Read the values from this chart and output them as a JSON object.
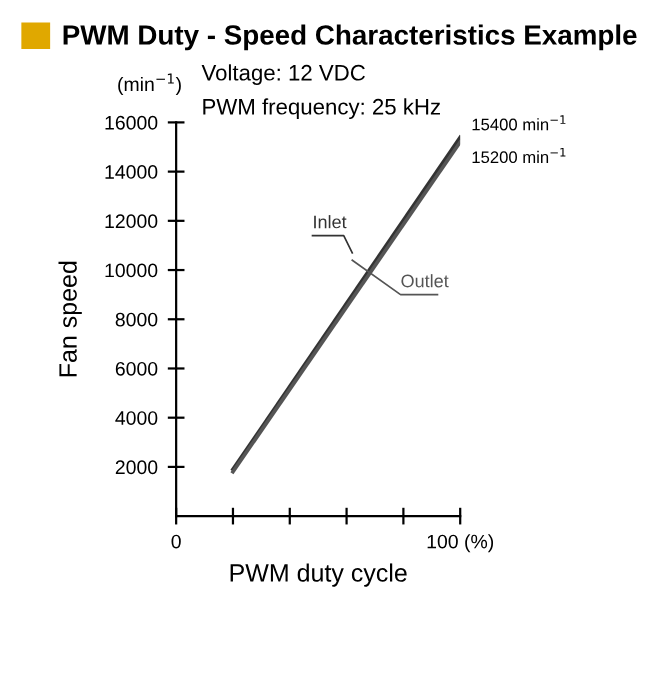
{
  "chart_data": {
    "type": "line",
    "title": "PWM Duty - Speed Characteristics Example",
    "xlabel": "PWM duty cycle",
    "ylabel": "Fan speed",
    "x": [
      20,
      100
    ],
    "series": [
      {
        "name": "Inlet",
        "color": "#333333",
        "values": [
          1900,
          15400
        ]
      },
      {
        "name": "Outlet",
        "color": "#555555",
        "values": [
          1800,
          15200
        ]
      }
    ],
    "annotations": [
      "(min$^{−1}$)",
      "Voltage: 12 VDC",
      "PWM frequency: 25 kHz",
      {
        "text": "15400 min$^{−1}$",
        "x": 100,
        "y": 15400
      },
      {
        "text": "15200 min$^{−1}$",
        "x": 100,
        "y": 15200
      }
    ],
    "xlim": [
      0,
      100
    ],
    "ylim": [
      0,
      16000
    ],
    "xticks": [
      0,
      {
        "value": 20,
        "label": null
      },
      {
        "value": 40,
        "label": null
      },
      {
        "value": 60,
        "label": null
      },
      {
        "value": 80,
        "label": null
      },
      {
        "value": 100,
        "label": "100 (%)"
      }
    ],
    "yticks": [
      2000,
      4000,
      6000,
      8000,
      10000,
      12000,
      14000,
      16000
    ],
    "grid": false,
    "legend": false,
    "marker": "none",
    "line_style": "solid"
  }
}
